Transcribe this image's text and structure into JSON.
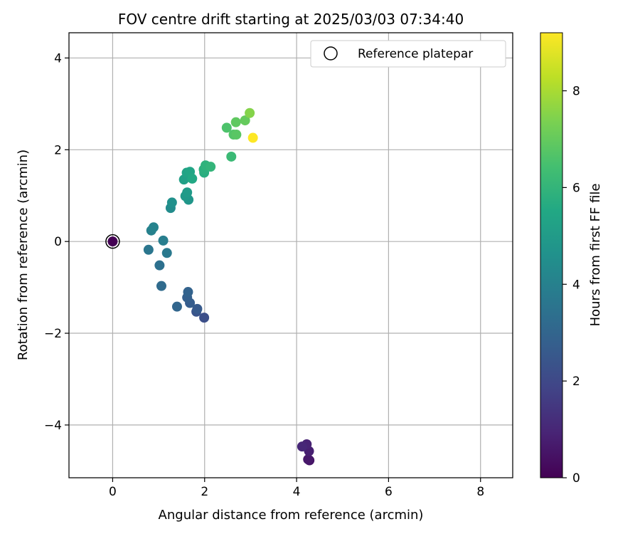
{
  "chart_data": {
    "type": "scatter",
    "title": "FOV centre drift starting at 2025/03/03 07:34:40",
    "xlabel": "Angular distance from reference (arcmin)",
    "ylabel": "Rotation from reference (arcmin)",
    "xlim": [
      -0.95,
      8.7
    ],
    "ylim": [
      -5.15,
      4.55
    ],
    "xticks": [
      0,
      2,
      4,
      6,
      8
    ],
    "xtick_labels": [
      "0",
      "2",
      "4",
      "6",
      "8"
    ],
    "yticks": [
      -4,
      -2,
      0,
      2,
      4
    ],
    "ytick_labels": [
      "−4",
      "−2",
      "0",
      "2",
      "4"
    ],
    "grid": true,
    "legend": {
      "position": "top-right",
      "entries": [
        "Reference platepar"
      ]
    },
    "colorbar": {
      "label": "Hours from first FF file",
      "colormap": "viridis",
      "range": [
        0,
        9.2
      ],
      "ticks": [
        0,
        2,
        4,
        6,
        8
      ],
      "tick_labels": [
        "0",
        "2",
        "4",
        "6",
        "8"
      ]
    },
    "reference_point": {
      "x": 0,
      "y": 0
    },
    "points": [
      {
        "x": 0.0,
        "y": 0.0,
        "t": 0.0
      },
      {
        "x": 4.28,
        "y": -4.77,
        "t": 0.5
      },
      {
        "x": 4.25,
        "y": -4.75,
        "t": 0.6
      },
      {
        "x": 4.27,
        "y": -4.57,
        "t": 0.8
      },
      {
        "x": 4.22,
        "y": -4.42,
        "t": 0.9
      },
      {
        "x": 4.12,
        "y": -4.47,
        "t": 1.0
      },
      {
        "x": 1.99,
        "y": -1.66,
        "t": 2.2
      },
      {
        "x": 1.82,
        "y": -1.53,
        "t": 2.4
      },
      {
        "x": 1.84,
        "y": -1.47,
        "t": 2.6
      },
      {
        "x": 1.68,
        "y": -1.34,
        "t": 2.7
      },
      {
        "x": 1.62,
        "y": -1.22,
        "t": 2.8
      },
      {
        "x": 1.64,
        "y": -1.1,
        "t": 2.9
      },
      {
        "x": 1.4,
        "y": -1.42,
        "t": 3.0
      },
      {
        "x": 1.06,
        "y": -0.97,
        "t": 3.2
      },
      {
        "x": 1.02,
        "y": -0.52,
        "t": 3.4
      },
      {
        "x": 0.78,
        "y": -0.18,
        "t": 3.6
      },
      {
        "x": 1.18,
        "y": -0.25,
        "t": 3.7
      },
      {
        "x": 1.1,
        "y": 0.02,
        "t": 3.9
      },
      {
        "x": 0.84,
        "y": 0.24,
        "t": 4.0
      },
      {
        "x": 0.89,
        "y": 0.31,
        "t": 4.1
      },
      {
        "x": 1.26,
        "y": 0.73,
        "t": 4.4
      },
      {
        "x": 1.29,
        "y": 0.85,
        "t": 4.6
      },
      {
        "x": 1.65,
        "y": 0.91,
        "t": 4.8
      },
      {
        "x": 1.58,
        "y": 0.99,
        "t": 4.9
      },
      {
        "x": 1.62,
        "y": 1.07,
        "t": 5.0
      },
      {
        "x": 1.55,
        "y": 1.35,
        "t": 5.2
      },
      {
        "x": 1.61,
        "y": 1.5,
        "t": 5.3
      },
      {
        "x": 1.68,
        "y": 1.52,
        "t": 5.4
      },
      {
        "x": 1.73,
        "y": 1.37,
        "t": 5.5
      },
      {
        "x": 1.99,
        "y": 1.5,
        "t": 5.7
      },
      {
        "x": 1.98,
        "y": 1.57,
        "t": 5.8
      },
      {
        "x": 2.02,
        "y": 1.66,
        "t": 5.9
      },
      {
        "x": 2.13,
        "y": 1.63,
        "t": 6.0
      },
      {
        "x": 2.58,
        "y": 1.85,
        "t": 6.2
      },
      {
        "x": 2.48,
        "y": 2.48,
        "t": 6.6
      },
      {
        "x": 2.63,
        "y": 2.33,
        "t": 6.7
      },
      {
        "x": 2.69,
        "y": 2.33,
        "t": 6.8
      },
      {
        "x": 2.68,
        "y": 2.6,
        "t": 6.9
      },
      {
        "x": 2.88,
        "y": 2.64,
        "t": 7.0
      },
      {
        "x": 2.98,
        "y": 2.8,
        "t": 7.5
      },
      {
        "x": 3.05,
        "y": 2.26,
        "t": 9.2
      }
    ]
  }
}
